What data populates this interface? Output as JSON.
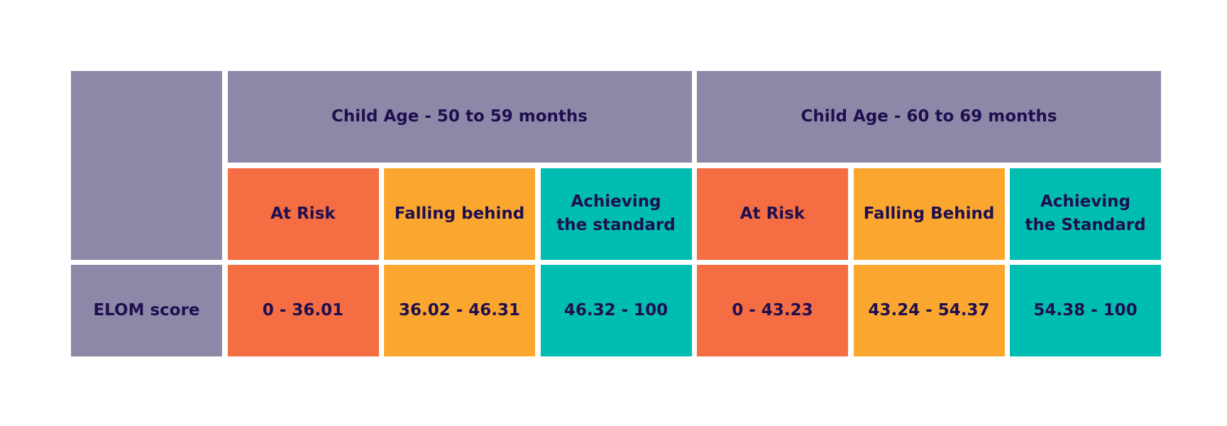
{
  "colors": {
    "header": "#8d88a8",
    "at_risk": "#f46d43",
    "falling_behind": "#fba72f",
    "achieving": "#00bdb1",
    "text": "#1f0f4f"
  },
  "table": {
    "groups": [
      {
        "title": "Child Age - 50 to 59 months",
        "categories": [
          "At Risk",
          "Falling behind",
          "Achieving the standard"
        ],
        "scores": [
          "0 - 36.01",
          "36.02 - 46.31",
          "46.32 - 100"
        ]
      },
      {
        "title": "Child Age - 60 to 69 months",
        "categories": [
          "At Risk",
          "Falling Behind",
          "Achieving the Standard"
        ],
        "scores": [
          "0 - 43.23",
          "43.24 - 54.37",
          "54.38 - 100"
        ]
      }
    ],
    "row_label": "ELOM score"
  }
}
